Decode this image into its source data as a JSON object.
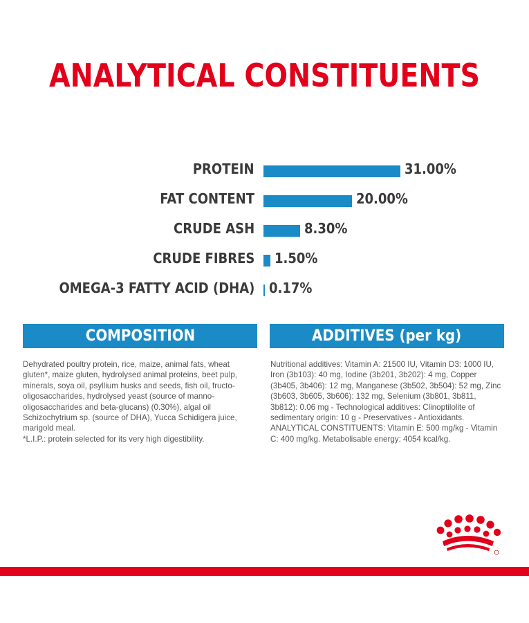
{
  "title": "ANALYTICAL CONSTITUENTS",
  "chart_data": {
    "type": "bar",
    "orientation": "horizontal",
    "title": "ANALYTICAL CONSTITUENTS",
    "categories": [
      "PROTEIN",
      "FAT CONTENT",
      "CRUDE ASH",
      "CRUDE FIBRES",
      "OMEGA-3 FATTY ACID (DHA)"
    ],
    "values": [
      31.0,
      20.0,
      8.3,
      1.5,
      0.17
    ],
    "value_labels": [
      "31.00%",
      "20.00%",
      "8.30%",
      "1.50%",
      "0.17%"
    ],
    "unit": "%",
    "xlim": [
      0,
      31
    ],
    "grid": false,
    "legend": "none",
    "bar_color": "#1a8bc6"
  },
  "composition": {
    "header": "COMPOSITION",
    "paragraphs": [
      "Dehydrated poultry protein, rice, maize, animal fats, wheat gluten*, maize gluten, hydrolysed animal proteins, beet pulp, minerals, soya oil, psyllium husks and seeds, fish oil, fructo-oligosaccharides, hydrolysed yeast (source of manno-oligosaccharides and beta-glucans) (0.30%), algal oil Schizochytrium sp. (source of DHA), Yucca Schidigera juice, marigold meal.",
      "*L.I.P.: protein selected for its very high digestibility."
    ]
  },
  "additives": {
    "header": "ADDITIVES (per kg)",
    "paragraphs": [
      "Nutritional additives: Vitamin A: 21500 IU, Vitamin D3: 1000 IU, Iron (3b103): 40 mg, Iodine (3b201, 3b202): 4 mg, Copper (3b405, 3b406): 12 mg, Manganese (3b502, 3b504): 52 mg, Zinc (3b603, 3b605, 3b606): 132 mg, Selenium (3b801, 3b811, 3b812): 0.06 mg - Technological additives: Clinoptilolite of sedimentary origin: 10 g - Preservatives - Antioxidants.",
      "ANALYTICAL CONSTITUENTS: Vitamin E: 500 mg/kg - Vitamin C: 400 mg/kg. Metabolisable energy: 4054 kcal/kg."
    ]
  },
  "colors": {
    "brand_red": "#e2001a",
    "accent_blue": "#1a8bc6",
    "text_dark": "#3a3a3a",
    "text_body": "#555555"
  },
  "logo": {
    "icon": "royal-canin-crown-icon"
  }
}
